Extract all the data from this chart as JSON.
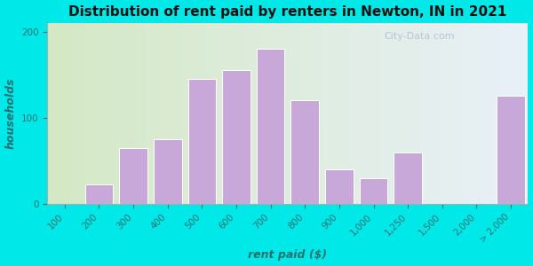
{
  "title": "Distribution of rent paid by renters in Newton, IN in 2021",
  "xlabel": "rent paid ($)",
  "ylabel": "households",
  "bar_labels": [
    "100",
    "200",
    "300",
    "400",
    "500",
    "600",
    "700",
    "800",
    "900",
    "1,000",
    "1,250",
    "1,500",
    "2,000",
    "> 2,000"
  ],
  "bar_heights": [
    0,
    22,
    65,
    75,
    145,
    155,
    180,
    120,
    40,
    30,
    60,
    0,
    0,
    125
  ],
  "bar_color": "#c8a8d8",
  "bar_edgecolor": "#ffffff",
  "ylim": [
    0,
    210
  ],
  "yticks": [
    0,
    100,
    200
  ],
  "outer_bg": "#00e8e8",
  "plot_bg_left": "#d4e8c4",
  "plot_bg_right": "#e8f0f8",
  "title_fontsize": 11,
  "axis_label_fontsize": 9,
  "tick_fontsize": 7.5,
  "tick_color": "#207070",
  "label_color": "#207070",
  "watermark_text": "City-Data.com"
}
